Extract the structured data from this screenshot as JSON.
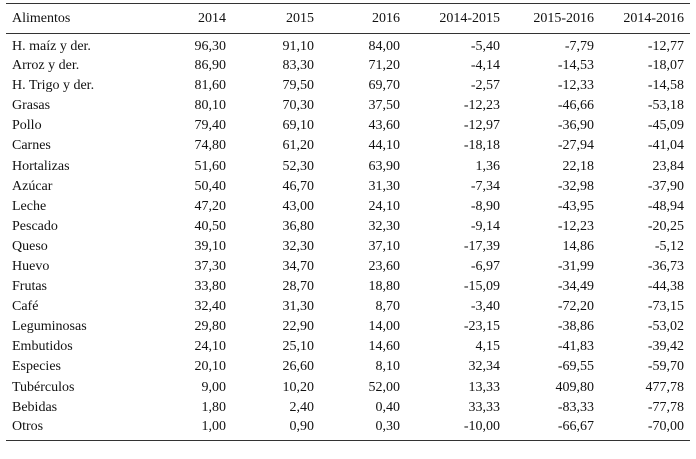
{
  "table": {
    "headers": [
      "Alimentos",
      "2014",
      "2015",
      "2016",
      "2014-2015",
      "2015-2016",
      "2014-2016"
    ],
    "rows": [
      [
        "H. maíz y der.",
        "96,30",
        "91,10",
        "84,00",
        "-5,40",
        "-7,79",
        "-12,77"
      ],
      [
        "Arroz y der.",
        "86,90",
        "83,30",
        "71,20",
        "-4,14",
        "-14,53",
        "-18,07"
      ],
      [
        "H. Trigo y der.",
        "81,60",
        "79,50",
        "69,70",
        "-2,57",
        "-12,33",
        "-14,58"
      ],
      [
        "Grasas",
        "80,10",
        "70,30",
        "37,50",
        "-12,23",
        "-46,66",
        "-53,18"
      ],
      [
        "Pollo",
        "79,40",
        "69,10",
        "43,60",
        "-12,97",
        "-36,90",
        "-45,09"
      ],
      [
        "Carnes",
        "74,80",
        "61,20",
        "44,10",
        "-18,18",
        "-27,94",
        "-41,04"
      ],
      [
        "Hortalizas",
        "51,60",
        "52,30",
        "63,90",
        "1,36",
        "22,18",
        "23,84"
      ],
      [
        "Azúcar",
        "50,40",
        "46,70",
        "31,30",
        "-7,34",
        "-32,98",
        "-37,90"
      ],
      [
        "Leche",
        "47,20",
        "43,00",
        "24,10",
        "-8,90",
        "-43,95",
        "-48,94"
      ],
      [
        "Pescado",
        "40,50",
        "36,80",
        "32,30",
        "-9,14",
        "-12,23",
        "-20,25"
      ],
      [
        "Queso",
        "39,10",
        "32,30",
        "37,10",
        "-17,39",
        "14,86",
        "-5,12"
      ],
      [
        "Huevo",
        "37,30",
        "34,70",
        "23,60",
        "-6,97",
        "-31,99",
        "-36,73"
      ],
      [
        "Frutas",
        "33,80",
        "28,70",
        "18,80",
        "-15,09",
        "-34,49",
        "-44,38"
      ],
      [
        "Café",
        "32,40",
        "31,30",
        "8,70",
        "-3,40",
        "-72,20",
        "-73,15"
      ],
      [
        "Leguminosas",
        "29,80",
        "22,90",
        "14,00",
        "-23,15",
        "-38,86",
        "-53,02"
      ],
      [
        "Embutidos",
        "24,10",
        "25,10",
        "14,60",
        "4,15",
        "-41,83",
        "-39,42"
      ],
      [
        "Especies",
        "20,10",
        "26,60",
        "8,10",
        "32,34",
        "-69,55",
        "-59,70"
      ],
      [
        "Tubérculos",
        "9,00",
        "10,20",
        "52,00",
        "13,33",
        "409,80",
        "477,78"
      ],
      [
        "Bebidas",
        "1,80",
        "2,40",
        "0,40",
        "33,33",
        "-83,33",
        "-77,78"
      ],
      [
        "Otros",
        "1,00",
        "0,90",
        "0,30",
        "-10,00",
        "-66,67",
        "-70,00"
      ]
    ]
  }
}
